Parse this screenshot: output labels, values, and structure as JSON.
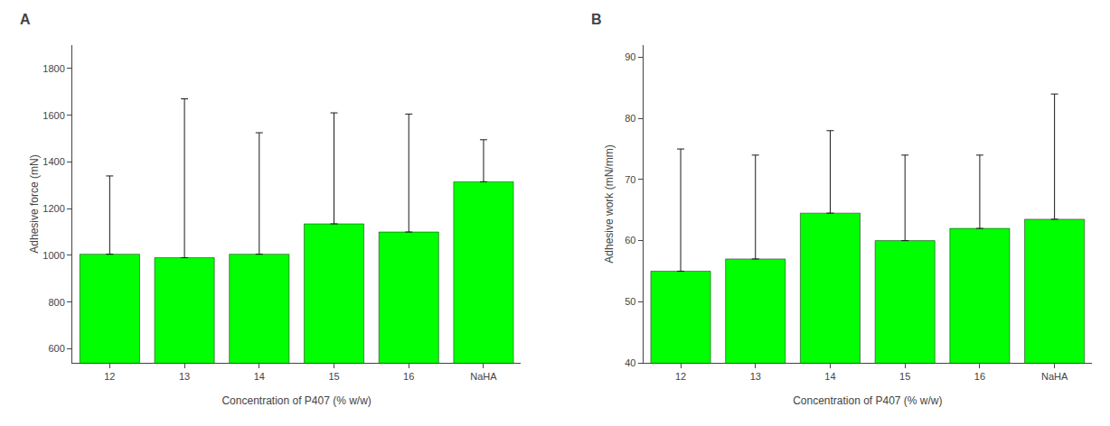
{
  "chart_data": [
    {
      "type": "bar",
      "title": "A",
      "categories": [
        "12",
        "13",
        "14",
        "15",
        "16",
        "NaHA"
      ],
      "values": [
        1005,
        990,
        1005,
        1135,
        1100,
        1315
      ],
      "errors_upper": [
        335,
        680,
        520,
        475,
        505,
        180
      ],
      "color": "#00FF00",
      "xlabel": "Concentration of P407 (% w/w)",
      "ylabel": "Adhesive force (mN)",
      "ylim": [
        540,
        1900
      ],
      "yticks": [
        600,
        800,
        1000,
        1200,
        1400,
        1600,
        1800
      ],
      "grid": false
    },
    {
      "type": "bar",
      "title": "B",
      "categories": [
        "12",
        "13",
        "14",
        "15",
        "16",
        "NaHA"
      ],
      "values": [
        55,
        57,
        64.5,
        60,
        62,
        63.5
      ],
      "errors_upper": [
        20,
        17,
        13.5,
        14,
        12,
        20.5
      ],
      "color": "#00FF00",
      "xlabel": "Concentration of P407 (% w/w)",
      "ylabel": "Adhesive work (mN/mm)",
      "ylim": [
        40,
        92
      ],
      "yticks": [
        40,
        50,
        60,
        70,
        80,
        90
      ],
      "grid": false
    }
  ]
}
